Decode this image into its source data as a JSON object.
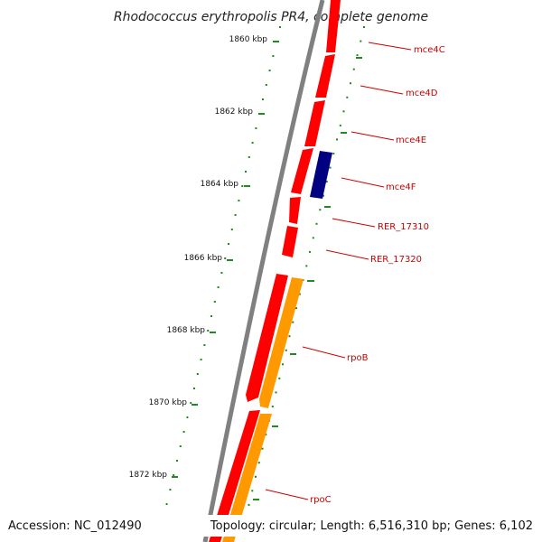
{
  "title": "Rhodococcus erythropolis PR4, complete genome",
  "accession_label": "Accession: NC_012490",
  "topology_label": "Topology: circular; Length: 6,516,310 bp; Genes: 6,102",
  "colors": {
    "backbone": "#808080",
    "tick": "#1f8a1f",
    "gene_forward": "#ff0000",
    "gene_blue": "#000080",
    "gene_orange": "#ff9900",
    "label": "#cc0000",
    "pointer": "#cc0000"
  },
  "kbp_ticks": [
    "1860 kbp",
    "1862 kbp",
    "1864 kbp",
    "1866 kbp",
    "1868 kbp",
    "1870 kbp",
    "1872 kbp"
  ],
  "gene_labels": [
    "mce4C",
    "mce4D",
    "mce4E",
    "mce4F",
    "RER_17310",
    "RER_17320",
    "rpoB",
    "rpoC"
  ]
}
